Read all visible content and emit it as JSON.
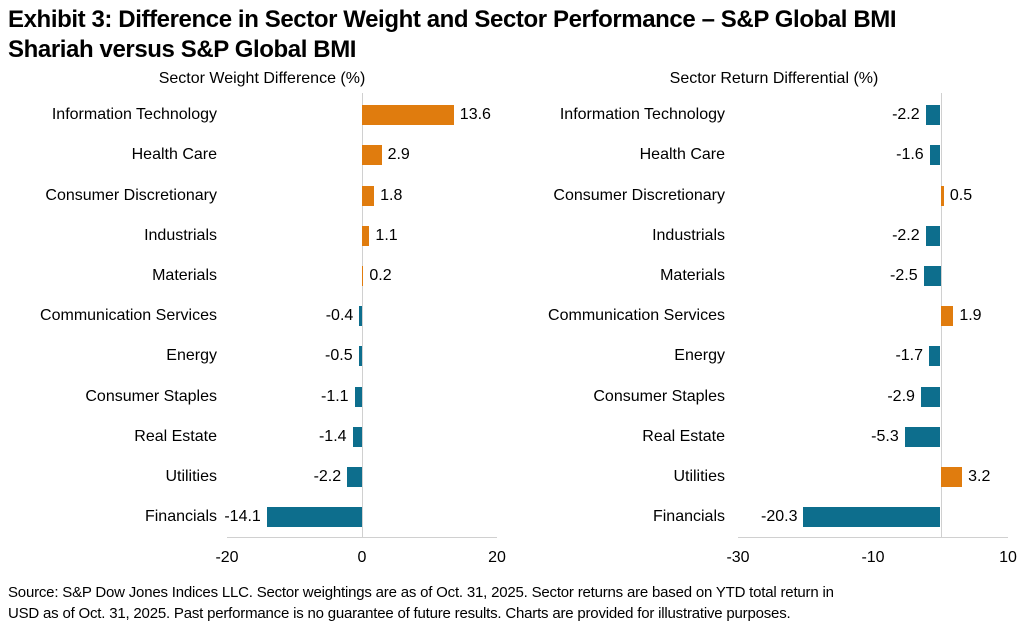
{
  "header": {
    "title_line1": "Exhibit 3: Difference in Sector Weight and Sector Performance – S&P Global BMI",
    "title_line2": "Shariah versus S&P Global BMI"
  },
  "colors": {
    "positive_bar": "#E07C0E",
    "negative_bar": "#0D6E8D",
    "gridline": "#D0D0D0",
    "text": "#000000"
  },
  "chart_data": [
    {
      "type": "bar",
      "orientation": "horizontal",
      "title": "Sector Weight Difference (%)",
      "categories": [
        "Information Technology",
        "Health Care",
        "Consumer Discretionary",
        "Industrials",
        "Materials",
        "Communication Services",
        "Energy",
        "Consumer Staples",
        "Real Estate",
        "Utilities",
        "Financials"
      ],
      "values": [
        13.6,
        2.9,
        1.8,
        1.1,
        0.2,
        -0.4,
        -0.5,
        -1.1,
        -1.4,
        -2.2,
        -14.1
      ],
      "xlim": [
        -20,
        20
      ],
      "xticks": [
        -20,
        0,
        20
      ],
      "grid": false,
      "value_labels_shown": true
    },
    {
      "type": "bar",
      "orientation": "horizontal",
      "title": "Sector Return Differential (%)",
      "categories": [
        "Information Technology",
        "Health Care",
        "Consumer Discretionary",
        "Industrials",
        "Materials",
        "Communication Services",
        "Energy",
        "Consumer Staples",
        "Real Estate",
        "Utilities",
        "Financials"
      ],
      "values": [
        -2.2,
        -1.6,
        0.5,
        -2.2,
        -2.5,
        1.9,
        -1.7,
        -2.9,
        -5.3,
        3.2,
        -20.3
      ],
      "xlim": [
        -30,
        10
      ],
      "xticks": [
        -30,
        -10,
        10
      ],
      "grid": false,
      "value_labels_shown": true
    }
  ],
  "footer": {
    "line1": "Source: S&P Dow Jones Indices LLC. Sector weightings are as of Oct. 31, 2025. Sector returns are based on YTD total return in",
    "line2": "USD as of Oct. 31, 2025. Past performance is no guarantee of future results. Charts are provided for illustrative purposes."
  }
}
